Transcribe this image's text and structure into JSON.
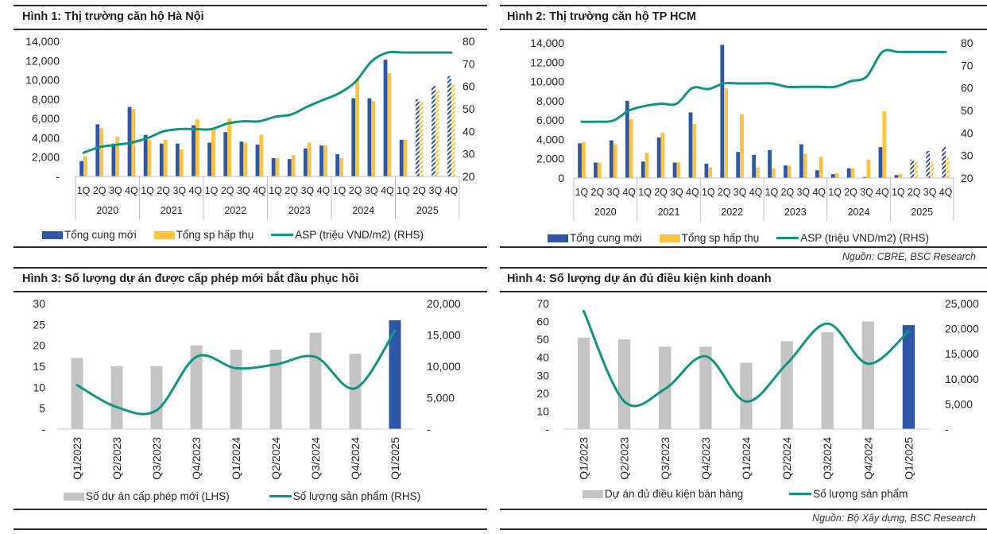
{
  "colors": {
    "blue": "#2e56a6",
    "yellow": "#fdc33c",
    "teal": "#0f9682",
    "gray": "#c4c4c4",
    "axis": "#bfbfbf"
  },
  "sources": {
    "top": "Nguồn: CBRE, BSC Research",
    "bottom": "Nguồn: Bộ Xây dựng, BSC Research"
  },
  "chart_data": [
    {
      "id": "fig1",
      "type": "bar",
      "title": "Hình 1: Thị trường căn hộ Hà Nội",
      "categories": [
        "1Q",
        "2Q",
        "3Q",
        "4Q",
        "1Q",
        "2Q",
        "3Q",
        "4Q",
        "1Q",
        "2Q",
        "3Q",
        "4Q",
        "1Q",
        "2Q",
        "3Q",
        "4Q",
        "1Q",
        "2Q",
        "3Q",
        "4Q",
        "1Q",
        "2Q",
        "3Q",
        "4Q"
      ],
      "groups": [
        "2020",
        "2021",
        "2022",
        "2023",
        "2024",
        "2025"
      ],
      "forecast_from_index": 21,
      "ylim_left": [
        0,
        14000
      ],
      "yticks_left": [
        "-",
        "2,000",
        "4,000",
        "6,000",
        "8,000",
        "10,000",
        "12,000",
        "14,000"
      ],
      "ylim_right": [
        20,
        80
      ],
      "yticks_right": [
        "20",
        "30",
        "40",
        "50",
        "60",
        "70",
        "80"
      ],
      "series": [
        {
          "name": "Tổng cung mới",
          "kind": "bar",
          "axis": "left",
          "color": "#2e56a6",
          "values": [
            1600,
            5400,
            3400,
            7200,
            4300,
            3400,
            3400,
            5300,
            3500,
            4600,
            3600,
            3300,
            1900,
            1800,
            2900,
            3200,
            2300,
            8100,
            8100,
            12100,
            3800,
            8000,
            9400,
            10400
          ]
        },
        {
          "name": "Tổng sp hấp thụ",
          "kind": "bar",
          "axis": "left",
          "color": "#fdc33c",
          "values": [
            2100,
            5000,
            4100,
            7000,
            3800,
            3800,
            2800,
            5900,
            4800,
            6000,
            3500,
            4300,
            1900,
            2200,
            3500,
            3200,
            1900,
            10100,
            7800,
            10700,
            3800,
            7800,
            9000,
            9500
          ]
        },
        {
          "name": "ASP (triệu VND/m2) (RHS)",
          "kind": "line",
          "axis": "right",
          "color": "#0f9682",
          "values": [
            30.5,
            33,
            34,
            35,
            37,
            40,
            41,
            41,
            41,
            43.5,
            44.5,
            44.5,
            46.5,
            47.5,
            51,
            54,
            57,
            62,
            71,
            75,
            75,
            75,
            75,
            75
          ]
        }
      ]
    },
    {
      "id": "fig2",
      "type": "bar",
      "title": "Hình 2: Thị trường căn hộ TP HCM",
      "categories": [
        "1Q",
        "2Q",
        "3Q",
        "4Q",
        "1Q",
        "2Q",
        "3Q",
        "4Q",
        "1Q",
        "2Q",
        "3Q",
        "4Q",
        "1Q",
        "2Q",
        "3Q",
        "4Q",
        "1Q",
        "2Q",
        "3Q",
        "4Q",
        "1Q",
        "2Q",
        "3Q",
        "4Q"
      ],
      "groups": [
        "2020",
        "2021",
        "2022",
        "2023",
        "2024",
        "2025"
      ],
      "forecast_from_index": 21,
      "ylim_left": [
        0,
        14000
      ],
      "yticks_left": [
        "0",
        "2,000",
        "4,000",
        "6,000",
        "8,000",
        "10,000",
        "12,000",
        "14,000"
      ],
      "ylim_right": [
        20,
        80
      ],
      "yticks_right": [
        "20",
        "30",
        "40",
        "50",
        "60",
        "70",
        "80"
      ],
      "series": [
        {
          "name": "Tổng cung mới",
          "kind": "bar",
          "axis": "left",
          "color": "#2e56a6",
          "values": [
            3600,
            1600,
            3900,
            8000,
            1700,
            4200,
            1600,
            6800,
            1500,
            13800,
            2700,
            2400,
            2900,
            1300,
            3500,
            800,
            400,
            1000,
            100,
            3200,
            300,
            1900,
            2800,
            3200
          ]
        },
        {
          "name": "Tổng sp hấp thụ",
          "kind": "bar",
          "axis": "left",
          "color": "#fdc33c",
          "values": [
            3700,
            1600,
            3500,
            6100,
            2600,
            4700,
            1600,
            5600,
            1100,
            9300,
            6600,
            1100,
            1000,
            1300,
            2500,
            2200,
            500,
            1000,
            1900,
            6900,
            400,
            1700,
            1700,
            2100
          ]
        },
        {
          "name": "ASP (triệu VND/m2) (RHS)",
          "kind": "line",
          "axis": "right",
          "color": "#0f9682",
          "values": [
            45,
            45,
            45.5,
            50,
            52,
            53,
            53,
            60,
            59.5,
            62,
            62,
            62,
            62,
            60.5,
            60.5,
            60.5,
            60.5,
            63,
            65,
            76,
            76,
            76,
            76,
            76
          ]
        }
      ]
    },
    {
      "id": "fig3",
      "type": "bar",
      "title": "Hình 3: Số lượng dự án được cấp phép mới bắt đầu phục hồi",
      "categories": [
        "Q1/2023",
        "Q2/2023",
        "Q3/2023",
        "Q4/2023",
        "Q1/2024",
        "Q2/2024",
        "Q3/2024",
        "Q4/2024",
        "Q1/2025"
      ],
      "highlight_index": 8,
      "ylim_left": [
        0,
        30
      ],
      "yticks_left": [
        "-",
        "5",
        "10",
        "15",
        "20",
        "25",
        "30"
      ],
      "ylim_right": [
        0,
        20000
      ],
      "yticks_right": [
        "-",
        "5,000",
        "10,000",
        "15,000",
        "20,000"
      ],
      "series": [
        {
          "name": "Số dự án cấp phép mới (LHS)",
          "kind": "bar",
          "axis": "left",
          "color": "#c4c4c4",
          "values": [
            17,
            15,
            15,
            20,
            19,
            19,
            23,
            18,
            26
          ]
        },
        {
          "name": "Số lượng sản phẩm (RHS)",
          "kind": "line",
          "axis": "right",
          "color": "#0f9682",
          "values": [
            7000,
            3500,
            3000,
            11500,
            9700,
            10300,
            11500,
            6500,
            15700
          ]
        }
      ]
    },
    {
      "id": "fig4",
      "type": "bar",
      "title": "Hình 4: Số lượng dự án đủ điều kiện kinh doanh",
      "categories": [
        "Q1/2023",
        "Q2/2023",
        "Q3/2023",
        "Q4/2023",
        "Q1/2024",
        "Q2/2024",
        "Q3/2024",
        "Q4/2024",
        "Q1/2025"
      ],
      "highlight_index": 8,
      "ylim_left": [
        0,
        70
      ],
      "yticks_left": [
        "-",
        "10",
        "20",
        "30",
        "40",
        "50",
        "60",
        "70"
      ],
      "ylim_right": [
        0,
        25000
      ],
      "yticks_right": [
        "-",
        "5,000",
        "10,000",
        "15,000",
        "20,000",
        "25,000"
      ],
      "series": [
        {
          "name": "Dự án đủ điều kiện bán hàng",
          "kind": "bar",
          "axis": "left",
          "color": "#c4c4c4",
          "values": [
            51,
            50,
            46,
            46,
            37,
            49,
            54,
            60,
            58
          ]
        },
        {
          "name": "Số lượng sản phẩm",
          "kind": "line",
          "axis": "right",
          "color": "#0f9682",
          "values": [
            23500,
            5500,
            8000,
            14500,
            5500,
            13000,
            21000,
            13000,
            19500
          ]
        }
      ]
    }
  ]
}
